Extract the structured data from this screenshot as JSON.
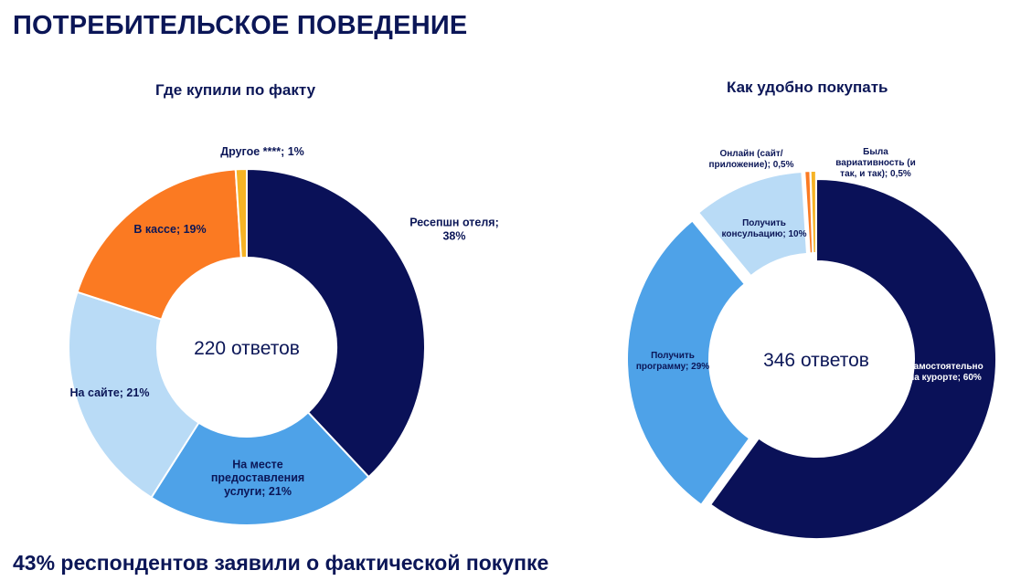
{
  "page": {
    "title": "ПОТРЕБИТЕЛЬСКОЕ ПОВЕДЕНИЕ",
    "footer": "43% респондентов заявили о фактической покупке"
  },
  "chart_data": [
    {
      "type": "pie",
      "variant": "donut",
      "title": "Где купили по факту",
      "center_label": "220 ответов",
      "slices": [
        {
          "label": "Ресепшн отеля",
          "value": 38,
          "display": "Ресепшн отеля;\n38%",
          "color": "#0a1158"
        },
        {
          "label": "На месте предоставления услуги",
          "value": 21,
          "display": "На месте\nпредоставления\nуслуги; 21%",
          "color": "#4ea2e8"
        },
        {
          "label": "На сайте",
          "value": 21,
          "display": "На сайте; 21%",
          "color": "#b9dbf6"
        },
        {
          "label": "В кассе",
          "value": 19,
          "display": "В кассе; 19%",
          "color": "#fb7a22"
        },
        {
          "label": "Другое ****",
          "value": 1,
          "display": "Другое ****; 1%",
          "color": "#f6b325"
        }
      ]
    },
    {
      "type": "pie",
      "variant": "donut-exploded",
      "title": "Как удобно покупать",
      "center_label": "346 ответов",
      "slices": [
        {
          "label": "Самостоятельно на курорте",
          "value": 60,
          "display": "Самостоятельно\nна курорте; 60%",
          "color": "#0a1158"
        },
        {
          "label": "Получить программу",
          "value": 29,
          "display": "Получить\nпрограмму; 29%",
          "color": "#4ea2e8"
        },
        {
          "label": "Получить консультацию",
          "value": 10,
          "display": "Получить\nконсульацию; 10%",
          "color": "#b9dbf6"
        },
        {
          "label": "Онлайн (сайт/приложение)",
          "value": 0.5,
          "display": "Онлайн (сайт/\nприложение); 0,5%",
          "color": "#fb7a22"
        },
        {
          "label": "Была вариативность (и так, и так)",
          "value": 0.5,
          "display": "Была\nвариативность (и\nтак, и так); 0,5%",
          "color": "#f6b325"
        }
      ]
    }
  ]
}
